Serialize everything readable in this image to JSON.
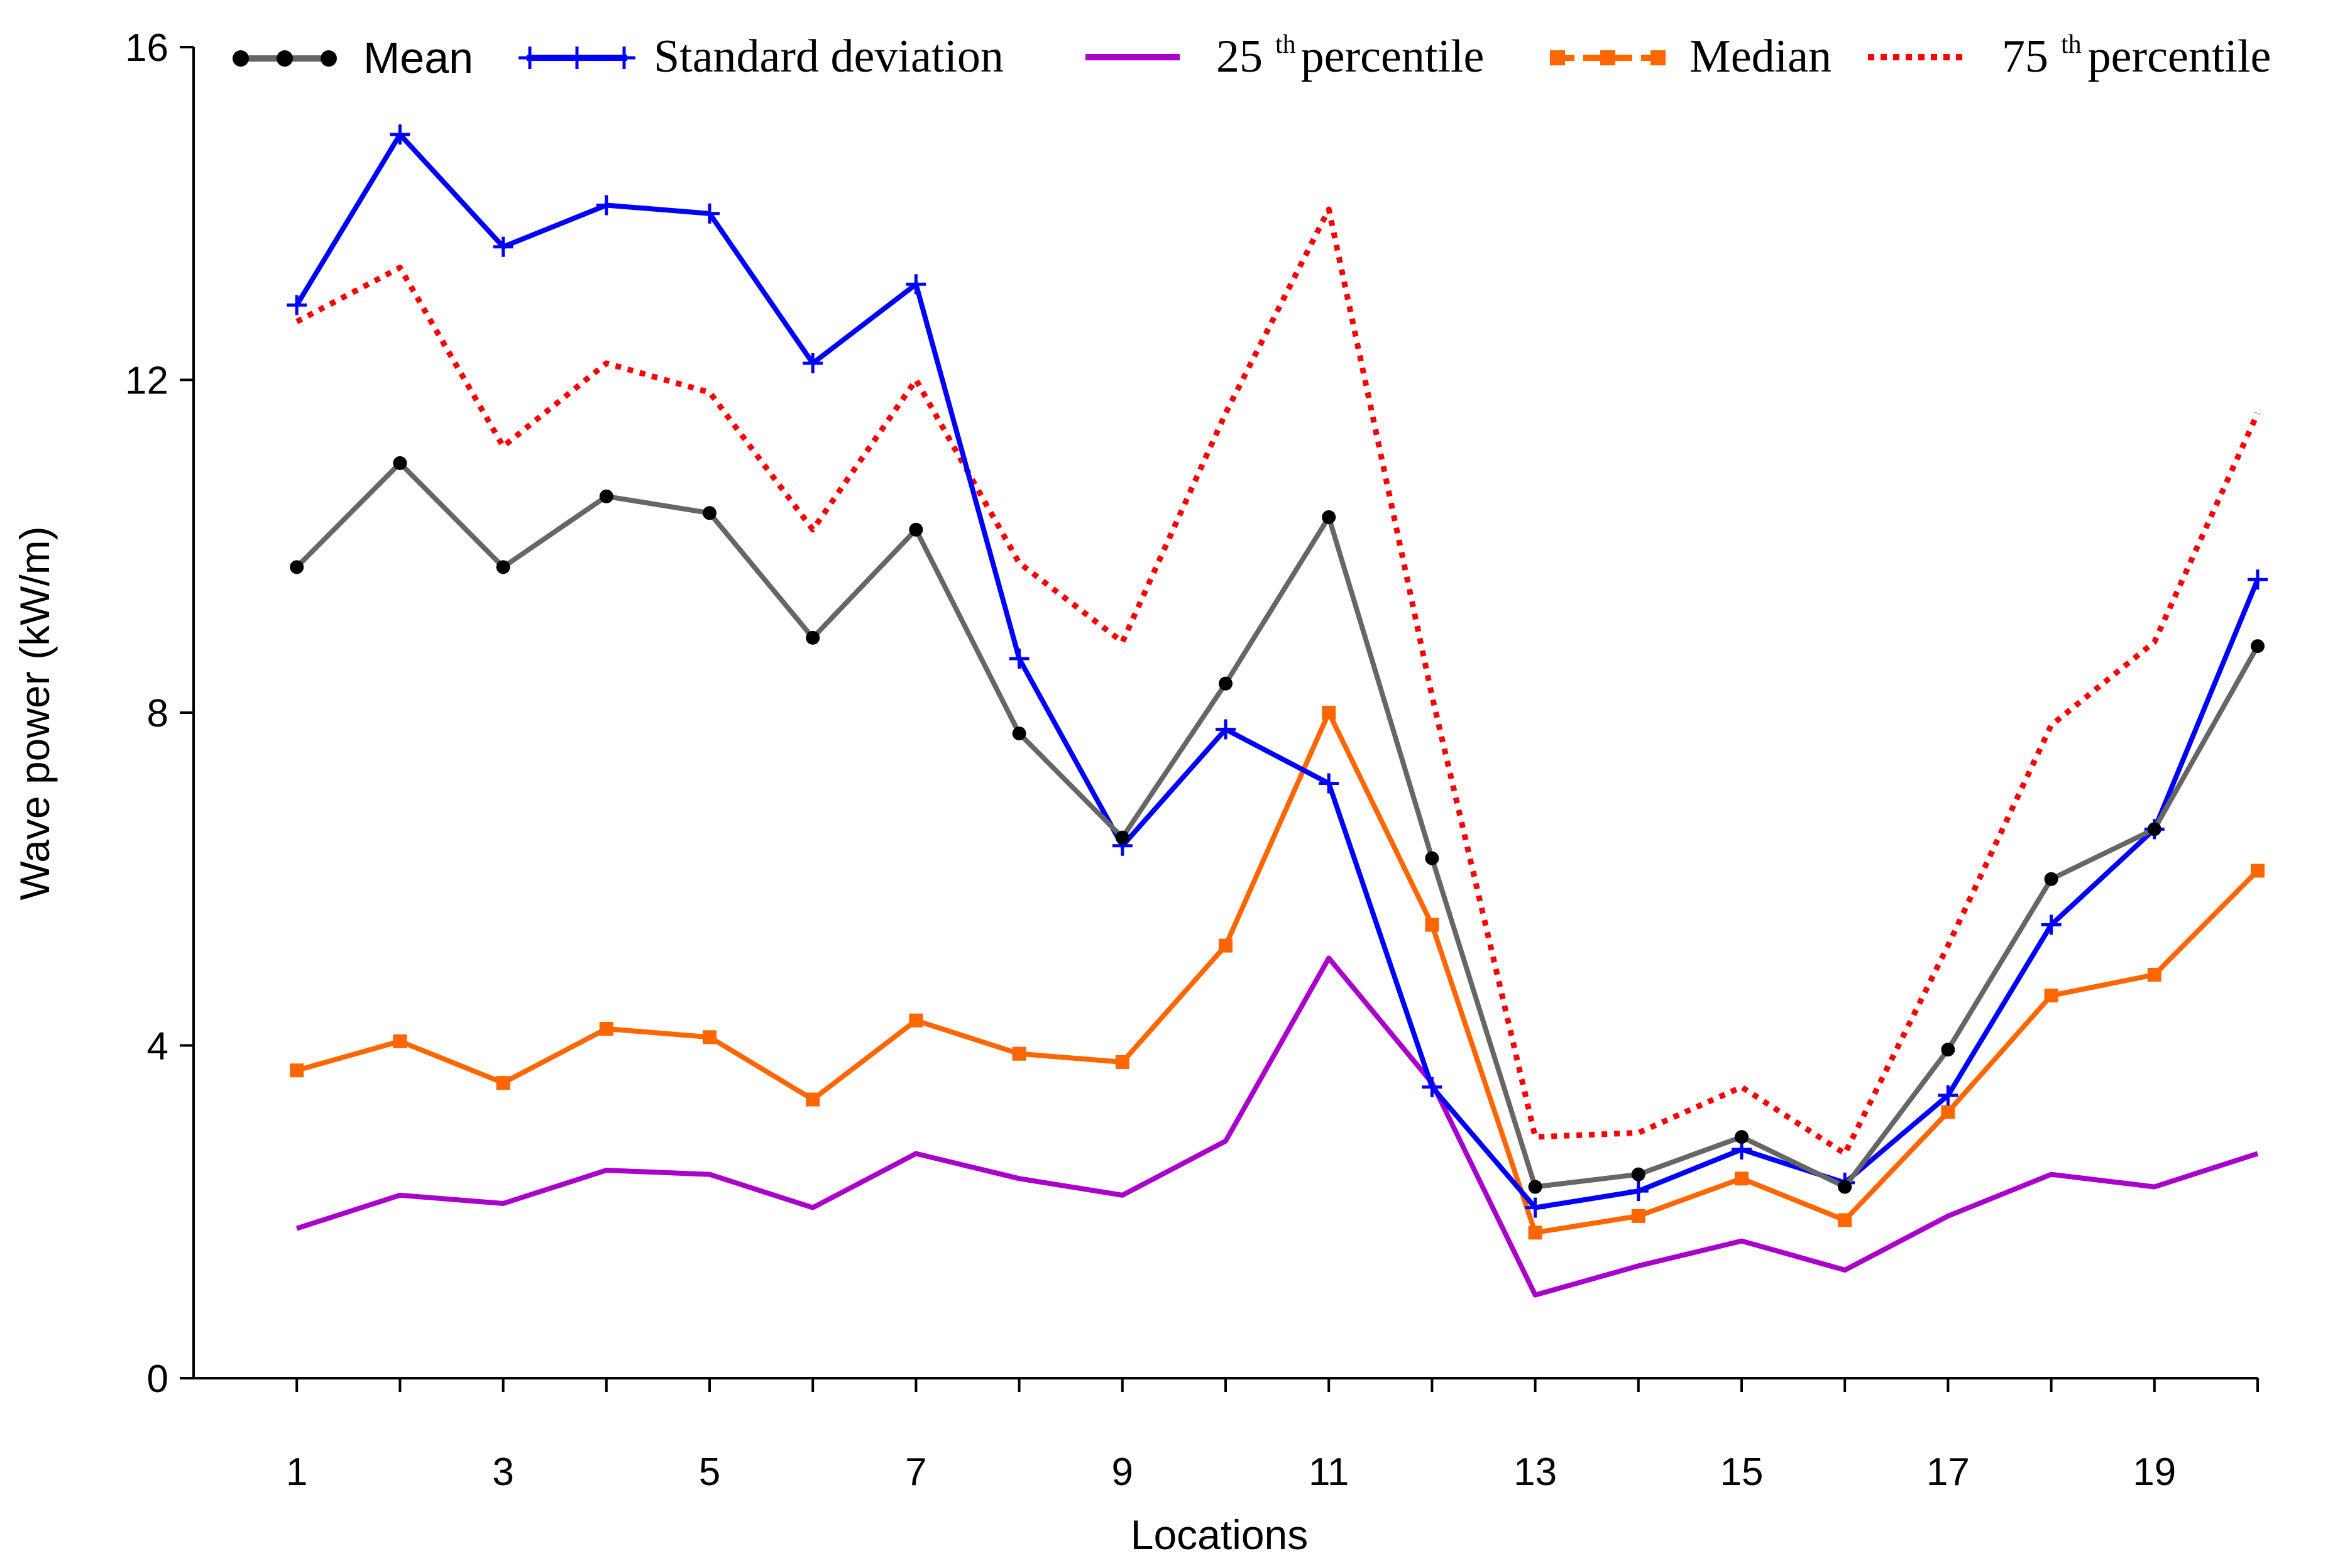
{
  "chart_data": {
    "type": "line",
    "title": "",
    "xlabel": "Locations",
    "ylabel": "Wave power (kW/m)",
    "xlim": [
      0,
      20
    ],
    "ylim": [
      0,
      16
    ],
    "x": [
      1,
      2,
      3,
      4,
      5,
      6,
      7,
      8,
      9,
      10,
      11,
      12,
      13,
      14,
      15,
      16,
      17,
      18,
      19,
      20
    ],
    "xticks": [
      1,
      3,
      5,
      7,
      9,
      11,
      13,
      15,
      17,
      19
    ],
    "yticks": [
      0,
      4,
      8,
      12,
      16
    ],
    "legend_position": "top",
    "series": [
      {
        "id": "mean",
        "name": "Mean",
        "color": "#666666",
        "marker": "circle",
        "marker_color": "#000000",
        "dash": "solid",
        "values": [
          9.75,
          11.0,
          9.75,
          10.6,
          10.4,
          8.9,
          10.2,
          7.75,
          6.5,
          8.35,
          10.35,
          6.25,
          2.3,
          2.45,
          2.9,
          2.3,
          3.95,
          6.0,
          6.6,
          8.8
        ]
      },
      {
        "id": "std",
        "name": "Standard deviation",
        "color": "#0000ff",
        "marker": "plus",
        "marker_color": "#0000ff",
        "dash": "solid",
        "values": [
          12.9,
          14.95,
          13.6,
          14.1,
          14.0,
          12.2,
          13.15,
          8.65,
          6.4,
          7.8,
          7.15,
          3.5,
          2.05,
          2.25,
          2.75,
          2.35,
          3.4,
          5.45,
          6.6,
          9.6
        ]
      },
      {
        "id": "p25",
        "name_base": "25",
        "name_sup": "th",
        "name_tail": "percentile",
        "color": "#aa00cc",
        "marker": "none",
        "marker_color": "#aa00cc",
        "dash": "solid",
        "values": [
          1.8,
          2.2,
          2.1,
          2.5,
          2.45,
          2.05,
          2.7,
          2.4,
          2.2,
          2.85,
          5.05,
          3.55,
          1.0,
          1.35,
          1.65,
          1.3,
          1.95,
          2.45,
          2.3,
          2.7
        ]
      },
      {
        "id": "median",
        "name": "Median",
        "color": "#ff6600",
        "marker": "square",
        "marker_color": "#ff6600",
        "dash": "solid",
        "values": [
          3.7,
          4.05,
          3.55,
          4.2,
          4.1,
          3.35,
          4.3,
          3.9,
          3.8,
          5.2,
          8.0,
          5.45,
          1.75,
          1.95,
          2.4,
          1.9,
          3.2,
          4.6,
          4.85,
          6.1
        ]
      },
      {
        "id": "p75",
        "name_base": "75",
        "name_sup": "th",
        "name_tail": "percentile",
        "color": "#ff0000",
        "marker": "none",
        "marker_color": "#ff0000",
        "dash": "dotted",
        "values": [
          12.7,
          13.35,
          11.2,
          12.2,
          11.85,
          10.2,
          12.0,
          9.8,
          8.85,
          11.6,
          14.05,
          8.2,
          2.9,
          2.95,
          3.5,
          2.7,
          5.2,
          7.85,
          8.85,
          11.6
        ]
      }
    ]
  }
}
